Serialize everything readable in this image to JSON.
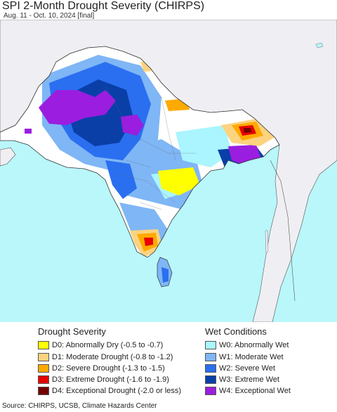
{
  "header": {
    "title": "SPI 2-Month Drought Severity (CHIRPS)",
    "subtitle": "Aug. 11 - Oct. 10, 2024 [final]"
  },
  "legend": {
    "drought": {
      "title": "Drought Severity",
      "items": [
        {
          "label": "D0: Abnormally Dry (-0.5 to -0.7)",
          "color": "#ffff00"
        },
        {
          "label": "D1: Moderate Drought (-0.8 to -1.2)",
          "color": "#fcd37f"
        },
        {
          "label": "D2: Severe Drought (-1.3 to -1.5)",
          "color": "#ffaa00"
        },
        {
          "label": "D3: Extreme Drought (-1.6 to -1.9)",
          "color": "#e60000"
        },
        {
          "label": "D4: Exceptional Drought (-2.0 or less)",
          "color": "#730000"
        }
      ]
    },
    "wet": {
      "title": "Wet Conditions",
      "items": [
        {
          "label": "W0: Abnormally Wet",
          "color": "#aaf5ff"
        },
        {
          "label": "W1: Moderate Wet",
          "color": "#7fb6f5"
        },
        {
          "label": "W2: Severe Wet",
          "color": "#2a6ff0"
        },
        {
          "label": "W3: Extreme Wet",
          "color": "#0a3fa8"
        },
        {
          "label": "W4: Exceptional Wet",
          "color": "#9b1de0"
        }
      ]
    }
  },
  "source": "Source: CHIRPS, UCSB, Climate Hazards Center",
  "map_colors": {
    "ocean": "#b9f7fb",
    "land_outside": "#efeff3",
    "land_base": "#ffffff"
  }
}
